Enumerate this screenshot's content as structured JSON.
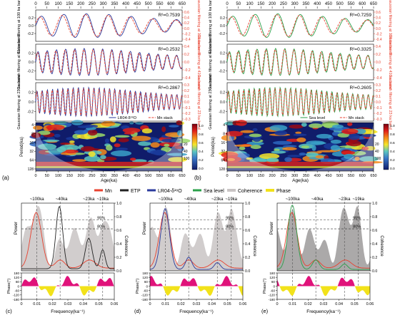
{
  "colors": {
    "mn": "#e8412f",
    "etp": "#222222",
    "lr04": "#2a3a9c",
    "sea_level": "#2aa04a",
    "coherence": "#c9c4c4",
    "phase_pos": "#e0127a",
    "phase_neg": "#f2e21a"
  },
  "top_axis": {
    "ticks": [
      "0",
      "50",
      "100",
      "150",
      "200",
      "250",
      "300",
      "350",
      "400",
      "450",
      "500",
      "550",
      "600",
      "650"
    ],
    "xlabel": "Age(ka)"
  },
  "panel_a": {
    "tag": "(a)",
    "rows": [
      {
        "ylabel": "Gaussian filtering at 100 ka band",
        "r2": "R²=0.7539",
        "left_ticks": [
          "0.2",
          "0.0",
          "-0.2"
        ],
        "right_ticks": [
          "0.6",
          "0.4",
          "0.2",
          "0.0",
          "-0.2",
          "-0.4"
        ],
        "series": [
          "LR04",
          "Mn"
        ]
      },
      {
        "ylabel": "Gaussian filtering at 41 ka band",
        "r2": "R²=0.2532",
        "left_ticks": [
          "0.2",
          "0.0",
          "-0.2"
        ],
        "right_ticks": [
          "0.4",
          "0.2",
          "0.0",
          "-0.2",
          "-0.4"
        ],
        "series": [
          "LR04",
          "Mn"
        ]
      },
      {
        "ylabel": "Gaussian filtering at 23 ka band",
        "r2": "R²=0.2867",
        "left_ticks": [
          "0.2",
          "0.0",
          "-0.2"
        ],
        "right_ticks": [
          "0.3",
          "0.2",
          "0.1",
          "0.0",
          "-0.1",
          "-0.2",
          "-0.3"
        ],
        "series": [
          "LR04",
          "Mn"
        ]
      }
    ],
    "legend": [
      "LR04-δ¹⁸O",
      "Mn stack"
    ],
    "wavelet": {
      "ylabel": "Period(ka)",
      "yticks": [
        "4",
        "8",
        "16",
        "32",
        "64",
        "128"
      ],
      "right_ticks": [
        "20",
        "40",
        "100"
      ],
      "colorbar": [
        "1.0",
        "0.8",
        "0.6",
        "0.4",
        "0.2",
        "0.0"
      ]
    }
  },
  "panel_b": {
    "tag": "(b)",
    "rows": [
      {
        "ylabel": "Gaussian filtering at 100 ka band",
        "r2": "R²=0.7259",
        "series": [
          "Sea level",
          "Mn"
        ]
      },
      {
        "ylabel": "Gaussian filtering at 41 ka band",
        "r2": "R²=0.3325",
        "series": [
          "Sea level",
          "Mn"
        ]
      },
      {
        "ylabel": "Gaussian filtering at 23 ka band",
        "r2": "R²=0.2605",
        "series": [
          "Sea level",
          "Mn"
        ]
      }
    ],
    "legend": [
      "Sea level",
      "Mn stack"
    ],
    "wavelet": {
      "ylabel": "Period(ka)",
      "yticks": [
        "4",
        "8",
        "16",
        "32",
        "64",
        "128"
      ],
      "right_ticks": [
        "20",
        "40",
        "100"
      ],
      "colorbar": [
        "1.0",
        "0.8",
        "0.6",
        "0.4",
        "0.2",
        "0.0"
      ]
    }
  },
  "bottom_legend": [
    "Mn",
    "ETP",
    "LR04-δ¹⁸O",
    "Sea level",
    "Coherence",
    "Phase"
  ],
  "spectral": {
    "xlabel": "Frequency(ka⁻¹)",
    "xticks": [
      "0",
      "0.01",
      "0.02",
      "0.03",
      "0.04",
      "0.05",
      "0.06"
    ],
    "power_label": "Power",
    "coherence_label": "Coherence",
    "coherence_ticks": [
      "1.0",
      "0.8",
      "0.6",
      "0.4",
      "0.2",
      "0.0"
    ],
    "phase_label": "Phase(°)",
    "phase_ticks": [
      "180",
      "120",
      "60",
      "0",
      "-60",
      "-120",
      "-180"
    ],
    "levels": [
      "95%",
      "80%"
    ],
    "band_labels": [
      "~100ka",
      "~40ka",
      "~23ka",
      "~19ka"
    ],
    "panels": [
      {
        "tag": "(c)",
        "series": [
          "mn",
          "etp"
        ]
      },
      {
        "tag": "(d)",
        "series": [
          "mn",
          "lr04"
        ]
      },
      {
        "tag": "(e)",
        "series": [
          "mn",
          "sea_level"
        ]
      }
    ]
  },
  "chart_data": [
    {
      "type": "line",
      "title": "",
      "xlabel": "Age(ka)",
      "xlim": [
        0,
        650
      ],
      "series": [
        {
          "name": "LR04-δ¹⁸O",
          "band_period_ka": [
            100,
            41,
            23
          ]
        },
        {
          "name": "Mn stack",
          "band_period_ka": [
            100,
            41,
            23
          ]
        }
      ],
      "r2": [
        0.7539,
        0.2532,
        0.2867
      ]
    },
    {
      "type": "line",
      "title": "",
      "xlabel": "Age(ka)",
      "xlim": [
        0,
        650
      ],
      "series": [
        {
          "name": "Sea level",
          "band_period_ka": [
            100,
            41,
            23
          ]
        },
        {
          "name": "Mn stack",
          "band_period_ka": [
            100,
            41,
            23
          ]
        }
      ],
      "r2": [
        0.7259,
        0.3325,
        0.2605
      ]
    },
    {
      "type": "line",
      "xlabel": "Frequency(ka⁻¹)",
      "xlim": [
        0,
        0.06
      ],
      "coherence_lim": [
        0,
        1.0
      ],
      "phase_lim": [
        -180,
        180
      ],
      "confidence_levels": {
        "95%": 0.75,
        "80%": 0.62
      },
      "peaks_frequency": {
        "~100ka": 0.01,
        "~40ka": 0.025,
        "~23ka": 0.0435,
        "~19ka": 0.0525
      }
    }
  ]
}
